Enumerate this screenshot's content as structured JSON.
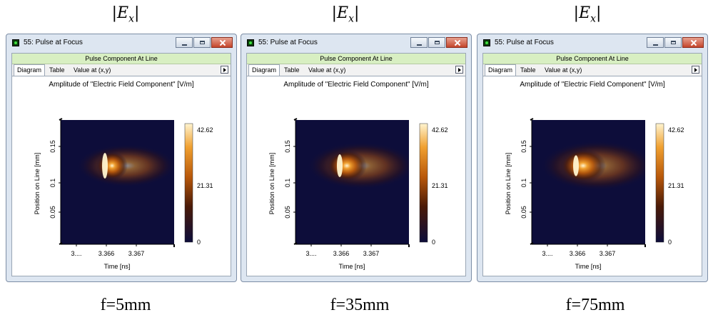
{
  "column_title": {
    "bar_left": "|",
    "symbol": "E",
    "subscript": "x",
    "bar_right": "|"
  },
  "windows": [
    {
      "title": "55: Pulse at Focus",
      "subheading": "Pulse Component At Line",
      "tabs": [
        "Diagram",
        "Table",
        "Value at (x,y)"
      ],
      "plot_title": "Amplitude of \"Electric Field Component\"  [V/m]",
      "ylabel": "Position on Line [mm]",
      "xlabel": "Time [ns]",
      "yticks": [
        "0.15",
        "0.1",
        "0.05"
      ],
      "xticks": [
        "3....",
        "3.366",
        "3.367"
      ],
      "colorbar_ticks": [
        "42.62",
        "21.31",
        "0"
      ],
      "caption": "f=5mm"
    },
    {
      "title": "55: Pulse at Focus",
      "subheading": "Pulse Component At Line",
      "tabs": [
        "Diagram",
        "Table",
        "Value at (x,y)"
      ],
      "plot_title": "Amplitude of \"Electric Field Component\"  [V/m]",
      "ylabel": "Position on Line [mm]",
      "xlabel": "Time [ns]",
      "yticks": [
        "0.15",
        "0.1",
        "0.05"
      ],
      "xticks": [
        "3....",
        "3.366",
        "3.367"
      ],
      "colorbar_ticks": [
        "42.62",
        "21.31",
        "0"
      ],
      "caption": "f=35mm"
    },
    {
      "title": "55: Pulse at Focus",
      "subheading": "Pulse Component At Line",
      "tabs": [
        "Diagram",
        "Table",
        "Value at (x,y)"
      ],
      "plot_title": "Amplitude of \"Electric Field Component\"  [V/m]",
      "ylabel": "Position on Line [mm]",
      "xlabel": "Time [ns]",
      "yticks": [
        "0.15",
        "0.1",
        "0.05"
      ],
      "xticks": [
        "3....",
        "3.366",
        "3.367"
      ],
      "colorbar_ticks": [
        "42.62",
        "21.31",
        "0"
      ],
      "caption": "f=75mm"
    }
  ],
  "colors": {
    "window_frame": "#dde6f1",
    "subheading_bg": "#d8efc2",
    "plot_background": "#0d0d3a",
    "colormap": [
      "#0d0d3a",
      "#4a1a08",
      "#b8580a",
      "#f0a030",
      "#fff4d0"
    ]
  }
}
